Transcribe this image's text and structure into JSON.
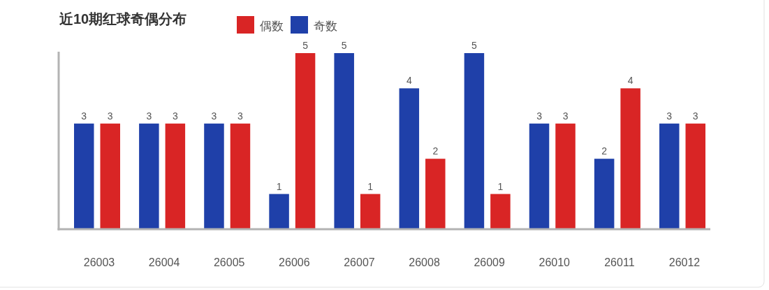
{
  "chart_data": {
    "type": "bar",
    "title": "近10期红球奇偶分布",
    "categories": [
      "26003",
      "26004",
      "26005",
      "26006",
      "26007",
      "26008",
      "26009",
      "26010",
      "26011",
      "26012"
    ],
    "series": [
      {
        "name": "奇数",
        "color": "#1f40a9",
        "values": [
          3,
          3,
          3,
          1,
          5,
          4,
          5,
          3,
          2,
          3
        ]
      },
      {
        "name": "偶数",
        "color": "#d92525",
        "values": [
          3,
          3,
          3,
          5,
          1,
          2,
          1,
          3,
          4,
          3
        ]
      }
    ],
    "ylim": [
      0,
      5
    ],
    "data_labels": true,
    "legend": "top",
    "tick_labels": "x"
  }
}
